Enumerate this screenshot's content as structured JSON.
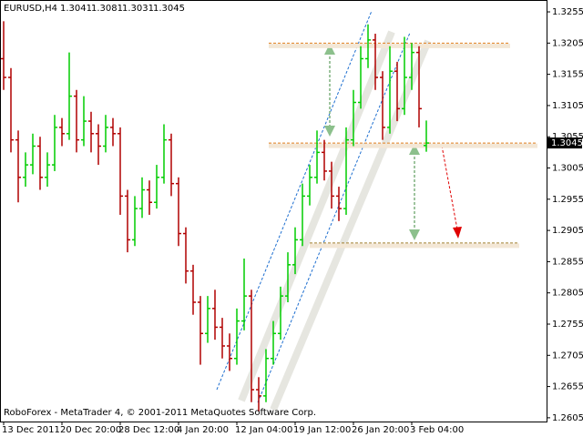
{
  "chart_data": {
    "type": "ohlc",
    "symbol": "EURUSD,H4",
    "footer": "RoboForex - MetaTrader 4, © 2001-2011 MetaQuotes Software Corp.",
    "categories": [
      "13 Dec 2011",
      null,
      null,
      null,
      null,
      null,
      null,
      null,
      "20 Dec 20:00",
      null,
      null,
      null,
      null,
      null,
      null,
      null,
      "28 Dec 12:00",
      null,
      null,
      null,
      null,
      null,
      null,
      null,
      "4 Jan 20:00",
      null,
      null,
      null,
      null,
      null,
      null,
      null,
      "12 Jan 04:00",
      null,
      null,
      null,
      null,
      null,
      null,
      null,
      "19 Jan 12:00",
      null,
      null,
      null,
      null,
      null,
      null,
      null,
      "26 Jan 20:00",
      null,
      null,
      null,
      null,
      null,
      null,
      null,
      "3 Feb 04:00",
      null,
      null
    ],
    "open": [
      1.318,
      1.315,
      1.305,
      1.299,
      1.301,
      1.304,
      1.299,
      1.301,
      1.307,
      1.306,
      1.312,
      1.305,
      1.308,
      1.306,
      1.304,
      1.307,
      1.306,
      1.296,
      1.289,
      1.294,
      1.297,
      1.295,
      1.299,
      1.305,
      1.298,
      1.29,
      1.284,
      1.279,
      1.274,
      1.278,
      1.275,
      1.272,
      1.27,
      1.276,
      1.28,
      1.265,
      1.264,
      1.27,
      1.274,
      1.28,
      1.285,
      1.289,
      1.296,
      1.299,
      1.303,
      1.3,
      1.296,
      1.294,
      1.305,
      1.311,
      1.318,
      1.321,
      1.315,
      1.307,
      1.316,
      1.31,
      1.315,
      1.319,
      1.3041
    ],
    "high": [
      1.324,
      1.3165,
      1.3065,
      1.303,
      1.306,
      1.3055,
      1.303,
      1.309,
      1.3085,
      1.319,
      1.313,
      1.312,
      1.3095,
      1.3075,
      1.309,
      1.3085,
      1.307,
      1.297,
      1.296,
      1.299,
      1.2985,
      1.301,
      1.3075,
      1.306,
      1.299,
      1.291,
      1.285,
      1.28,
      1.28,
      1.281,
      1.2765,
      1.274,
      1.278,
      1.286,
      1.281,
      1.267,
      1.2715,
      1.276,
      1.2815,
      1.287,
      1.291,
      1.298,
      1.301,
      1.3065,
      1.305,
      1.3015,
      1.2975,
      1.307,
      1.313,
      1.32,
      1.3235,
      1.322,
      1.316,
      1.32,
      1.3175,
      1.3215,
      1.3205,
      1.32,
      1.3081
    ],
    "low": [
      1.313,
      1.303,
      1.295,
      1.2975,
      1.2995,
      1.297,
      1.2975,
      1.3,
      1.304,
      1.305,
      1.303,
      1.304,
      1.303,
      1.301,
      1.303,
      1.304,
      1.293,
      1.287,
      1.288,
      1.2925,
      1.293,
      1.294,
      1.298,
      1.296,
      1.288,
      1.282,
      1.277,
      1.269,
      1.2725,
      1.273,
      1.27,
      1.268,
      1.269,
      1.2745,
      1.263,
      1.2615,
      1.263,
      1.269,
      1.273,
      1.279,
      1.2835,
      1.288,
      1.2945,
      1.298,
      1.2985,
      1.294,
      1.292,
      1.293,
      1.304,
      1.31,
      1.3165,
      1.313,
      1.305,
      1.306,
      1.308,
      1.309,
      1.313,
      1.307,
      1.3031
    ],
    "close": [
      1.315,
      1.305,
      1.299,
      1.301,
      1.304,
      1.299,
      1.301,
      1.307,
      1.306,
      1.312,
      1.305,
      1.308,
      1.306,
      1.304,
      1.307,
      1.306,
      1.296,
      1.289,
      1.294,
      1.297,
      1.295,
      1.299,
      1.305,
      1.298,
      1.29,
      1.284,
      1.279,
      1.274,
      1.278,
      1.275,
      1.272,
      1.27,
      1.276,
      1.28,
      1.265,
      1.264,
      1.27,
      1.274,
      1.28,
      1.285,
      1.289,
      1.296,
      1.299,
      1.303,
      1.3,
      1.296,
      1.294,
      1.305,
      1.311,
      1.318,
      1.321,
      1.315,
      1.307,
      1.316,
      1.31,
      1.315,
      1.319,
      1.31,
      1.3045
    ],
    "up_color": "#00cc00",
    "down_color": "#b00000",
    "levels": [
      1.3205,
      1.3045,
      1.2885
    ],
    "ylim": [
      1.2599,
      1.3274
    ],
    "yticks": [
      1.2605,
      1.2655,
      1.2705,
      1.2755,
      1.2805,
      1.2855,
      1.2905,
      1.2955,
      1.3005,
      1.3055,
      1.3105,
      1.3155,
      1.3205,
      1.3255
    ]
  }
}
